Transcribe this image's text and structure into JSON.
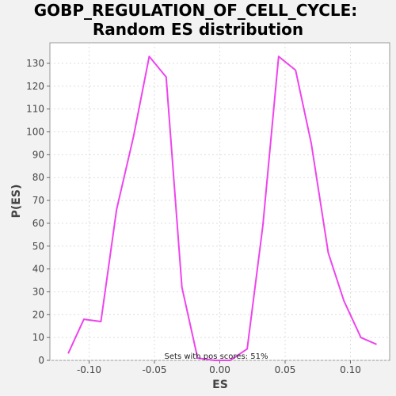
{
  "chart_data": {
    "type": "line",
    "title_line1": "GOBP_REGULATION_OF_CELL_CYCLE:",
    "title_line2": "Random ES distribution",
    "xlabel": "ES",
    "ylabel": "P(ES)",
    "xlim": [
      -0.13,
      0.13
    ],
    "ylim": [
      0,
      139
    ],
    "x_ticks": [
      -0.1,
      -0.05,
      0.0,
      0.05,
      0.1
    ],
    "x_tick_labels": [
      "-0.10",
      "-0.05",
      "0.00",
      "0.05",
      "0.10"
    ],
    "y_ticks": [
      0,
      10,
      20,
      30,
      40,
      50,
      60,
      70,
      80,
      90,
      100,
      110,
      120,
      130
    ],
    "y_tick_labels": [
      "0",
      "10",
      "20",
      "30",
      "40",
      "50",
      "60",
      "70",
      "80",
      "90",
      "100",
      "110",
      "120",
      "130"
    ],
    "grid": true,
    "annotation": "Sets with pos scores: 51%",
    "line_color": "#ee44ee",
    "series": [
      {
        "x": [
          -0.116,
          -0.104,
          -0.091,
          -0.079,
          -0.066,
          -0.054,
          -0.041,
          -0.029,
          -0.017,
          -0.004,
          0.008,
          0.021,
          0.033,
          0.045,
          0.058,
          0.07,
          0.083,
          0.095,
          0.108,
          0.12
        ],
        "values": [
          3,
          18,
          17,
          66,
          98,
          133,
          124,
          32,
          1,
          0,
          0,
          5,
          59,
          133,
          127,
          95,
          47,
          26,
          10,
          7
        ]
      }
    ]
  }
}
